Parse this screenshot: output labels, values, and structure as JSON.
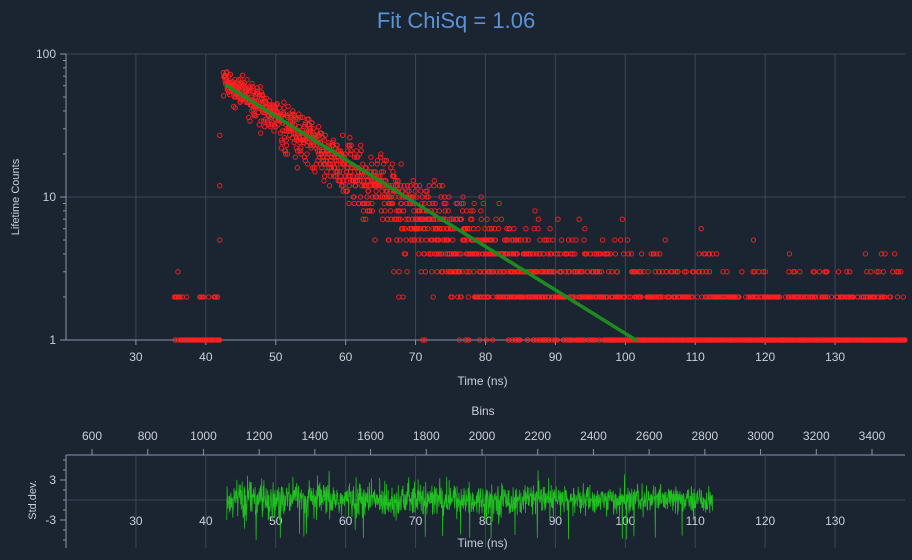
{
  "title": "Fit ChiSq = 1.06",
  "chart_data": [
    {
      "type": "scatter",
      "title": "Fit ChiSq = 1.06",
      "xlabel": "Time (ns)",
      "ylabel": "Lifetime Counts",
      "yscale": "log",
      "xlim": [
        20,
        140
      ],
      "ylim": [
        1,
        100
      ],
      "x_ticks": [
        30,
        40,
        50,
        60,
        70,
        80,
        90,
        100,
        110,
        120,
        130
      ],
      "y_ticks": [
        1,
        10,
        100
      ],
      "y_tick_labels": [
        "1",
        "10",
        "100"
      ],
      "grid": true,
      "series": [
        {
          "kind": "scatter",
          "color": "#ff2020",
          "marker": "open-circle",
          "decay": {
            "start_x": 42.5,
            "peak": 65,
            "tau": 12.5,
            "x_end": 140
          },
          "background_levels": [
            1,
            2,
            3,
            4
          ],
          "pre_pulse": {
            "x_range": [
              35.5,
              42
            ],
            "levels": [
              1,
              2
            ]
          }
        },
        {
          "kind": "line",
          "color": "#1f8a1f",
          "x_range": [
            43,
            101.5
          ],
          "model": "exponential decay",
          "y_start": 60,
          "y_end": 1
        }
      ],
      "secondary_x_axis": {
        "label": "Bins",
        "ticks": [
          600,
          800,
          1000,
          1200,
          1400,
          1600,
          1800,
          2000,
          2200,
          2400,
          2600,
          2800,
          3000,
          3200,
          3400
        ]
      }
    },
    {
      "type": "line",
      "title": "",
      "xlabel": "Time (ns)",
      "ylabel": "Std.dev.",
      "xlim": [
        20,
        140
      ],
      "ylim": [
        -6,
        6
      ],
      "x_ticks": [
        30,
        40,
        50,
        60,
        70,
        80,
        90,
        100,
        110,
        120,
        130
      ],
      "y_ticks": [
        3,
        -3
      ],
      "grid": true,
      "series": [
        {
          "kind": "residuals",
          "color": "#20c020",
          "x_range": [
            43,
            112.5
          ],
          "amplitude": 1.5
        }
      ]
    }
  ]
}
